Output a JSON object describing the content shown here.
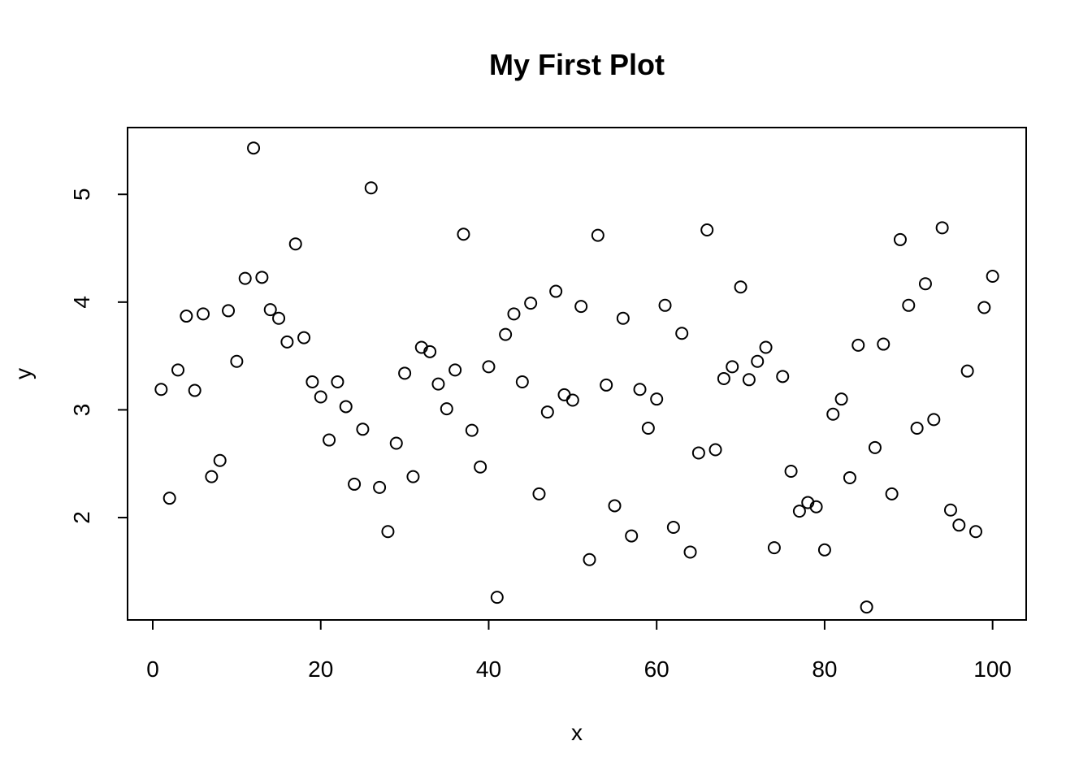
{
  "chart_data": {
    "type": "scatter",
    "title": "My First Plot",
    "xlabel": "x",
    "ylabel": "y",
    "xlim": [
      -3,
      104
    ],
    "ylim": [
      1.05,
      5.62
    ],
    "xticks": [
      0,
      20,
      40,
      60,
      80,
      100
    ],
    "yticks": [
      2,
      3,
      4,
      5
    ],
    "xtick_labels": [
      "0",
      "20",
      "40",
      "60",
      "80",
      "100"
    ],
    "ytick_labels": [
      "2",
      "3",
      "4",
      "5"
    ],
    "grid": false,
    "legend": "none",
    "marker": "open-circle",
    "x": [
      1,
      2,
      3,
      4,
      5,
      6,
      7,
      8,
      9,
      10,
      11,
      12,
      13,
      14,
      15,
      16,
      17,
      18,
      19,
      20,
      21,
      22,
      23,
      24,
      25,
      26,
      27,
      28,
      29,
      30,
      31,
      32,
      33,
      34,
      35,
      36,
      37,
      38,
      39,
      40,
      41,
      42,
      43,
      44,
      45,
      46,
      47,
      48,
      49,
      50,
      51,
      52,
      53,
      54,
      55,
      56,
      57,
      58,
      59,
      60,
      61,
      62,
      63,
      64,
      65,
      66,
      67,
      68,
      69,
      70,
      71,
      72,
      73,
      74,
      75,
      76,
      77,
      78,
      79,
      80,
      81,
      82,
      83,
      84,
      85,
      86,
      87,
      88,
      89,
      90,
      91,
      92,
      93,
      94,
      95,
      96,
      97,
      98,
      99,
      100
    ],
    "y": [
      3.19,
      2.18,
      3.37,
      3.87,
      3.18,
      3.89,
      2.38,
      2.53,
      3.92,
      3.45,
      4.22,
      5.43,
      4.23,
      3.93,
      3.85,
      3.63,
      4.54,
      3.67,
      3.26,
      3.12,
      2.72,
      3.26,
      3.03,
      2.31,
      2.82,
      5.06,
      2.28,
      1.87,
      2.69,
      3.34,
      2.38,
      3.58,
      3.54,
      3.24,
      3.01,
      3.37,
      4.63,
      2.81,
      2.47,
      3.4,
      1.26,
      3.7,
      3.89,
      3.26,
      3.99,
      2.22,
      2.98,
      4.1,
      3.14,
      3.09,
      3.96,
      1.61,
      4.62,
      3.23,
      2.11,
      3.85,
      1.83,
      3.19,
      2.83,
      3.1,
      3.97,
      1.91,
      3.71,
      1.68,
      2.6,
      4.67,
      2.63,
      3.29,
      3.4,
      4.14,
      3.28,
      3.45,
      3.58,
      1.72,
      3.31,
      2.43,
      2.06,
      2.14,
      2.1,
      1.7,
      2.96,
      3.1,
      2.37,
      3.6,
      1.17,
      2.65,
      3.61,
      2.22,
      4.58,
      3.97,
      2.83,
      4.17,
      2.91,
      4.69,
      2.07,
      1.93,
      3.36,
      1.87,
      3.95,
      4.24
    ]
  }
}
